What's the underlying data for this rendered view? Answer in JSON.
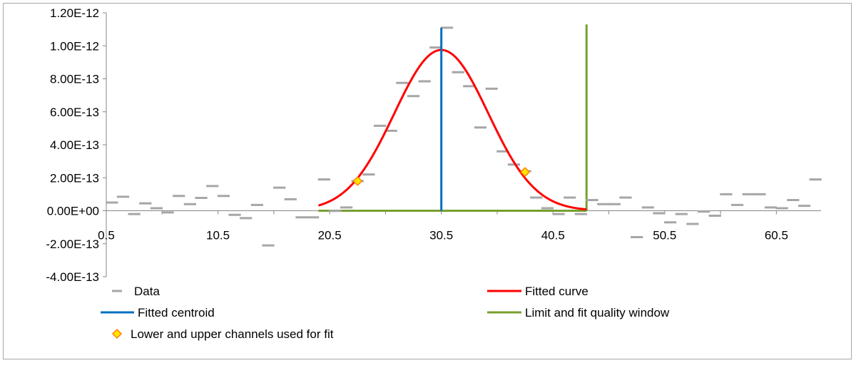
{
  "chart_data": {
    "type": "scatter",
    "title": "",
    "xlabel": "",
    "ylabel": "",
    "xlim": [
      0.5,
      64.5
    ],
    "ylim": [
      -4e-13,
      1.2e-12
    ],
    "x_ticks": [
      "0.5",
      "10.5",
      "20.5",
      "30.5",
      "40.5",
      "50.5",
      "60.5"
    ],
    "y_ticks": [
      "1.20E-12",
      "1.00E-12",
      "8.00E-13",
      "6.00E-13",
      "4.00E-13",
      "2.00E-13",
      "0.00E+00",
      "-2.00E-13",
      "-4.00E-13"
    ],
    "grid": false,
    "legend_placement": "bottom",
    "colors": {
      "data": "#a6a6a6",
      "fitted_curve": "#ff0000",
      "centroid": "#0070c0",
      "window": "#77a02f",
      "marker_fill": "#ffe600",
      "marker_edge": "#ff8000"
    },
    "series": [
      {
        "name": "Data",
        "marker": "dash",
        "x": [
          1,
          2,
          3,
          4,
          5,
          6,
          7,
          8,
          9,
          10,
          11,
          12,
          13,
          14,
          15,
          16,
          17,
          18,
          19,
          20,
          21,
          22,
          23,
          24,
          25,
          26,
          27,
          28,
          29,
          30,
          31,
          32,
          33,
          34,
          35,
          36,
          37,
          38,
          39,
          40,
          41,
          42,
          43,
          44,
          45,
          46,
          47,
          48,
          49,
          50,
          51,
          52,
          53,
          54,
          55,
          56,
          57,
          58,
          59,
          60,
          61,
          62,
          63,
          64
        ],
        "y": [
          5e-14,
          8.5e-14,
          -2e-14,
          4.5e-14,
          1.5e-14,
          -1e-14,
          9e-14,
          4e-14,
          7.8e-14,
          1.5e-13,
          9e-14,
          -2.5e-14,
          -4.5e-14,
          3.5e-14,
          -2.1e-13,
          1.4e-13,
          7e-14,
          -4e-14,
          -4e-14,
          1.9e-13,
          -1e-15,
          2e-14,
          1.8e-13,
          2.2e-13,
          5.15e-13,
          4.85e-13,
          7.75e-13,
          6.95e-13,
          7.85e-13,
          9.9e-13,
          1.11e-12,
          8.4e-13,
          7.55e-13,
          5.05e-13,
          7.4e-13,
          3.6e-13,
          2.8e-13,
          2.4e-13,
          8e-14,
          1.5e-14,
          -2e-14,
          8e-14,
          -2e-14,
          6.5e-14,
          4e-14,
          4e-14,
          8e-14,
          -1.6e-13,
          2e-14,
          -1.5e-14,
          -7e-14,
          -2e-14,
          -8e-14,
          -5e-15,
          -3e-14,
          1e-13,
          3.5e-14,
          1e-13,
          1e-13,
          2e-14,
          1.5e-14,
          6.5e-14,
          3e-14,
          1.9e-13
        ]
      },
      {
        "name": "Fitted curve",
        "type": "line",
        "function": "gaussian",
        "x_range": [
          19.5,
          43.5
        ],
        "amplitude": 9.75e-13,
        "center": 30.5,
        "sigma": 4.2
      },
      {
        "name": "Fitted centroid",
        "type": "vertical-line",
        "x": 30.5,
        "y": [
          0,
          1.11e-12
        ]
      },
      {
        "name": "Limit and fit quality window",
        "type": "bracket",
        "x": [
          19.5,
          43.5
        ],
        "y_top": 1.13e-12
      },
      {
        "name": "Lower and upper channels used for fit",
        "marker": "diamond",
        "x": [
          23,
          38
        ],
        "y": [
          1.8e-13,
          2.35e-13
        ]
      }
    ]
  }
}
